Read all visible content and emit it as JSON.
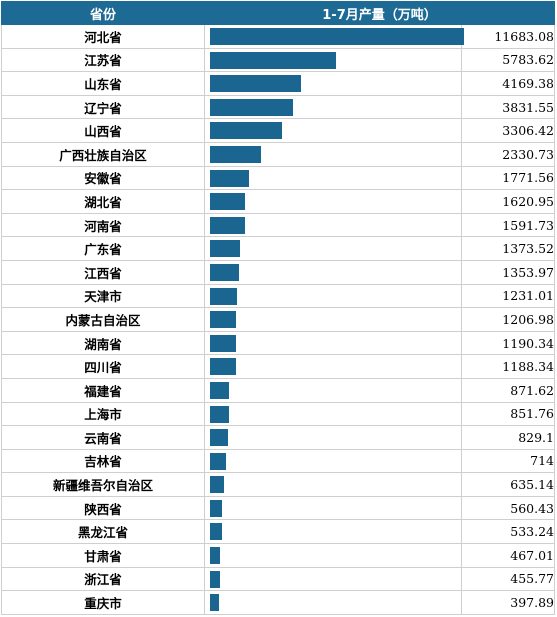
{
  "header": {
    "province_col": "省份",
    "value_col": "1-7月产量（万吨）"
  },
  "chart_data": {
    "type": "bar",
    "orientation": "horizontal",
    "title": "",
    "xlabel": "",
    "ylabel": "",
    "value_header": "1-7月产量（万吨）",
    "xlim": [
      0,
      11683.08
    ],
    "color": "#1b6690",
    "categories": [
      "河北省",
      "江苏省",
      "山东省",
      "辽宁省",
      "山西省",
      "广西壮族自治区",
      "安徽省",
      "湖北省",
      "河南省",
      "广东省",
      "江西省",
      "天津市",
      "内蒙古自治区",
      "湖南省",
      "四川省",
      "福建省",
      "上海市",
      "云南省",
      "吉林省",
      "新疆维吾尔自治区",
      "陕西省",
      "黑龙江省",
      "甘肃省",
      "浙江省",
      "重庆市"
    ],
    "values": [
      11683.08,
      5783.62,
      4169.38,
      3831.55,
      3306.42,
      2330.73,
      1771.56,
      1620.95,
      1591.73,
      1373.52,
      1353.97,
      1231.01,
      1206.98,
      1190.34,
      1188.34,
      871.62,
      851.76,
      829.1,
      714,
      635.14,
      560.43,
      533.24,
      467.01,
      455.77,
      397.89
    ],
    "value_labels": [
      "11683.08",
      "5783.62",
      "4169.38",
      "3831.55",
      "3306.42",
      "2330.73",
      "1771.56",
      "1620.95",
      "1591.73",
      "1373.52",
      "1353.97",
      "1231.01",
      "1206.98",
      "1190.34",
      "1188.34",
      "871.62",
      "851.76",
      "829.1",
      "714",
      "635.14",
      "560.43",
      "533.24",
      "467.01",
      "455.77",
      "397.89"
    ]
  }
}
